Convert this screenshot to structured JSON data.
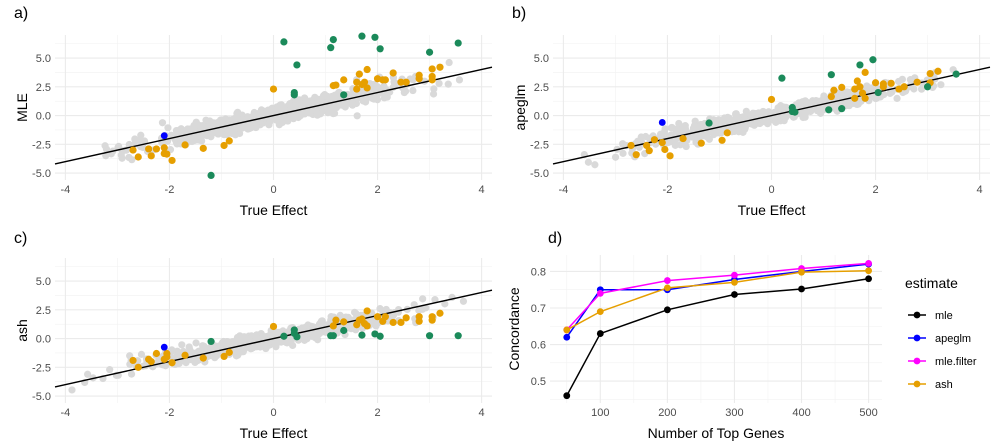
{
  "chart_data": [
    {
      "type": "scatter",
      "panel_label": "a)",
      "xlabel": "True Effect",
      "ylabel": "MLE",
      "xlim": [
        -4.2,
        4.2
      ],
      "ylim": [
        -5.6,
        7.0
      ],
      "xticks": [
        -4,
        -2,
        0,
        2,
        4
      ],
      "xtick_labels": [
        "-4",
        "-2",
        "0",
        "2",
        "4"
      ],
      "yticks": [
        -5,
        -2.5,
        0,
        2.5,
        5
      ],
      "ytick_labels": [
        "-5.0",
        "-2.5",
        "0.0",
        "2.5",
        "5.0"
      ],
      "grid": true,
      "reference_line": {
        "slope": 1,
        "intercept": 0,
        "color": "#000000"
      },
      "background_cloud": {
        "color": "#d9d9d9",
        "x_range": [
          -3.9,
          3.9
        ],
        "slope": 1,
        "spread": 0.6
      },
      "series": [
        {
          "name": "orange",
          "color": "#e69f00",
          "points": [
            [
              -2.7,
              -3.0
            ],
            [
              -2.6,
              -3.6
            ],
            [
              -2.4,
              -2.9
            ],
            [
              -2.35,
              -3.5
            ],
            [
              -2.25,
              -2.9
            ],
            [
              -2.1,
              -2.8
            ],
            [
              -2.1,
              -3.3
            ],
            [
              -2.05,
              -3.35
            ],
            [
              -1.95,
              -3.9
            ],
            [
              -1.7,
              -2.55
            ],
            [
              -1.35,
              -2.85
            ],
            [
              -0.95,
              -2.6
            ],
            [
              -0.85,
              -2.2
            ],
            [
              0.0,
              2.3
            ],
            [
              1.15,
              2.6
            ],
            [
              1.2,
              2.65
            ],
            [
              1.35,
              3.1
            ],
            [
              1.6,
              2.3
            ],
            [
              1.6,
              2.9
            ],
            [
              1.65,
              3.6
            ],
            [
              1.7,
              2.7
            ],
            [
              1.75,
              2.9
            ],
            [
              1.8,
              4.0
            ],
            [
              1.8,
              2.4
            ],
            [
              2.0,
              3.2
            ],
            [
              2.1,
              3.1
            ],
            [
              2.15,
              3.1
            ],
            [
              2.3,
              3.7
            ],
            [
              2.45,
              2.9
            ],
            [
              2.55,
              2.9
            ],
            [
              2.8,
              3.2
            ],
            [
              2.8,
              3.5
            ],
            [
              3.05,
              4.05
            ],
            [
              3.05,
              3.4
            ],
            [
              3.05,
              3.1
            ],
            [
              3.2,
              4.2
            ]
          ]
        },
        {
          "name": "green",
          "color": "#1b8a5a",
          "points": [
            [
              -1.2,
              -5.2
            ],
            [
              0.2,
              6.4
            ],
            [
              0.4,
              1.8
            ],
            [
              0.4,
              2.0
            ],
            [
              0.45,
              4.4
            ],
            [
              1.1,
              5.9
            ],
            [
              1.15,
              6.6
            ],
            [
              1.35,
              1.8
            ],
            [
              1.7,
              6.9
            ],
            [
              1.95,
              6.8
            ],
            [
              2.05,
              5.8
            ],
            [
              3.0,
              5.5
            ],
            [
              3.55,
              6.3
            ]
          ]
        },
        {
          "name": "blue",
          "color": "#0000ff",
          "points": [
            [
              -2.1,
              -1.75
            ]
          ]
        }
      ]
    },
    {
      "type": "scatter",
      "panel_label": "b)",
      "xlabel": "True Effect",
      "ylabel": "apeglm",
      "xlim": [
        -4.2,
        4.2
      ],
      "ylim": [
        -5.6,
        7.0
      ],
      "xticks": [
        -4,
        -2,
        0,
        2,
        4
      ],
      "xtick_labels": [
        "-4",
        "-2",
        "0",
        "2",
        "4"
      ],
      "yticks": [
        -5,
        -2.5,
        0,
        2.5,
        5
      ],
      "ytick_labels": [
        "-5.0",
        "-2.5",
        "0.0",
        "2.5",
        "5.0"
      ],
      "grid": true,
      "reference_line": {
        "slope": 1,
        "intercept": 0,
        "color": "#000000"
      },
      "background_cloud": {
        "color": "#d9d9d9",
        "x_range": [
          -3.9,
          3.9
        ],
        "slope": 1,
        "spread": 0.5
      },
      "series": [
        {
          "name": "orange",
          "color": "#e69f00",
          "points": [
            [
              -2.7,
              -2.6
            ],
            [
              -2.6,
              -3.4
            ],
            [
              -2.4,
              -2.6
            ],
            [
              -2.35,
              -3.05
            ],
            [
              -2.25,
              -2.1
            ],
            [
              -2.1,
              -2.35
            ],
            [
              -2.05,
              -2.95
            ],
            [
              -1.95,
              -3.5
            ],
            [
              -1.7,
              -2.0
            ],
            [
              -1.35,
              -2.4
            ],
            [
              -0.95,
              -2.15
            ],
            [
              -0.85,
              -1.5
            ],
            [
              0.0,
              1.4
            ],
            [
              1.15,
              1.65
            ],
            [
              1.2,
              2.2
            ],
            [
              1.35,
              2.45
            ],
            [
              1.6,
              1.5
            ],
            [
              1.6,
              2.3
            ],
            [
              1.65,
              3.0
            ],
            [
              1.7,
              2.5
            ],
            [
              1.75,
              1.95
            ],
            [
              1.8,
              3.75
            ],
            [
              1.8,
              1.5
            ],
            [
              2.0,
              2.85
            ],
            [
              2.15,
              2.5
            ],
            [
              2.15,
              2.75
            ],
            [
              2.3,
              2.8
            ],
            [
              2.45,
              2.3
            ],
            [
              2.55,
              2.5
            ],
            [
              2.8,
              2.9
            ],
            [
              3.05,
              3.65
            ],
            [
              3.05,
              2.85
            ],
            [
              3.2,
              3.85
            ]
          ]
        },
        {
          "name": "green",
          "color": "#1b8a5a",
          "points": [
            [
              -1.2,
              -0.65
            ],
            [
              0.2,
              3.25
            ],
            [
              0.4,
              0.7
            ],
            [
              0.4,
              0.35
            ],
            [
              0.45,
              0.3
            ],
            [
              1.1,
              0.5
            ],
            [
              1.15,
              3.55
            ],
            [
              1.35,
              0.6
            ],
            [
              1.7,
              4.4
            ],
            [
              1.95,
              4.85
            ],
            [
              2.05,
              2.0
            ],
            [
              3.0,
              2.5
            ],
            [
              3.55,
              3.6
            ]
          ]
        },
        {
          "name": "blue",
          "color": "#0000ff",
          "points": [
            [
              -2.1,
              -0.6
            ]
          ]
        }
      ]
    },
    {
      "type": "scatter",
      "panel_label": "c)",
      "xlabel": "True Effect",
      "ylabel": "ash",
      "xlim": [
        -4.2,
        4.2
      ],
      "ylim": [
        -5.6,
        7.0
      ],
      "xticks": [
        -4,
        -2,
        0,
        2,
        4
      ],
      "xtick_labels": [
        "-4",
        "-2",
        "0",
        "2",
        "4"
      ],
      "yticks": [
        -5,
        -2.5,
        0,
        2.5,
        5
      ],
      "ytick_labels": [
        "-5.0",
        "-2.5",
        "0.0",
        "2.5",
        "5.0"
      ],
      "grid": true,
      "reference_line": {
        "slope": 1,
        "intercept": 0,
        "color": "#000000"
      },
      "background_cloud": {
        "color": "#d9d9d9",
        "x_range": [
          -3.9,
          3.9
        ],
        "slope": 0.9,
        "spread": 0.5
      },
      "series": [
        {
          "name": "orange",
          "color": "#e69f00",
          "points": [
            [
              -2.7,
              -1.9
            ],
            [
              -2.6,
              -2.5
            ],
            [
              -2.4,
              -1.8
            ],
            [
              -2.35,
              -2.0
            ],
            [
              -2.25,
              -1.3
            ],
            [
              -2.1,
              -1.8
            ],
            [
              -2.05,
              -1.3
            ],
            [
              -2.05,
              -1.6
            ],
            [
              -1.95,
              -2.1
            ],
            [
              -1.7,
              -1.45
            ],
            [
              -1.35,
              -1.7
            ],
            [
              -0.95,
              -1.55
            ],
            [
              -0.85,
              -1.2
            ],
            [
              0.0,
              1.05
            ],
            [
              1.15,
              1.1
            ],
            [
              1.2,
              1.6
            ],
            [
              1.35,
              1.45
            ],
            [
              1.6,
              1.2
            ],
            [
              1.65,
              1.6
            ],
            [
              1.7,
              1.7
            ],
            [
              1.75,
              1.3
            ],
            [
              1.8,
              2.4
            ],
            [
              1.8,
              1.1
            ],
            [
              2.0,
              1.9
            ],
            [
              2.1,
              1.5
            ],
            [
              2.15,
              1.9
            ],
            [
              2.3,
              1.4
            ],
            [
              2.45,
              1.4
            ],
            [
              2.55,
              1.8
            ],
            [
              2.8,
              1.9
            ],
            [
              2.8,
              1.5
            ],
            [
              3.05,
              1.9
            ],
            [
              3.05,
              1.6
            ],
            [
              3.2,
              2.2
            ]
          ]
        },
        {
          "name": "green",
          "color": "#1b8a5a",
          "points": [
            [
              -1.2,
              -0.25
            ],
            [
              0.2,
              0.2
            ],
            [
              0.4,
              0.75
            ],
            [
              0.4,
              0.45
            ],
            [
              0.45,
              0.15
            ],
            [
              1.1,
              0.25
            ],
            [
              1.15,
              0.25
            ],
            [
              1.35,
              0.7
            ],
            [
              1.7,
              0.3
            ],
            [
              1.95,
              0.4
            ],
            [
              2.05,
              0.2
            ],
            [
              3.0,
              0.25
            ],
            [
              3.55,
              0.25
            ]
          ]
        },
        {
          "name": "blue",
          "color": "#0000ff",
          "points": [
            [
              -2.1,
              -0.75
            ]
          ]
        }
      ]
    },
    {
      "type": "line",
      "panel_label": "d)",
      "xlabel": "Number of Top Genes",
      "ylabel": "Concordance",
      "xlim": [
        25,
        520
      ],
      "ylim": [
        0.44,
        0.845
      ],
      "xticks": [
        100,
        200,
        300,
        400,
        500
      ],
      "xtick_labels": [
        "100",
        "200",
        "300",
        "400",
        "500"
      ],
      "yticks": [
        0.5,
        0.6,
        0.7,
        0.8
      ],
      "ytick_labels": [
        "0.5",
        "0.6",
        "0.7",
        "0.8"
      ],
      "grid": true,
      "x": [
        50,
        100,
        200,
        300,
        400,
        500
      ],
      "series": [
        {
          "name": "mle",
          "color": "#000000",
          "values": [
            0.46,
            0.63,
            0.695,
            0.737,
            0.752,
            0.78
          ]
        },
        {
          "name": "apeglm",
          "color": "#0000ff",
          "values": [
            0.62,
            0.75,
            0.75,
            0.778,
            0.8,
            0.82
          ]
        },
        {
          "name": "mle.filter",
          "color": "#ff00ff",
          "values": [
            0.64,
            0.74,
            0.775,
            0.79,
            0.808,
            0.822
          ]
        },
        {
          "name": "ash",
          "color": "#e69f00",
          "values": [
            0.64,
            0.69,
            0.755,
            0.77,
            0.798,
            0.802
          ]
        }
      ],
      "legend": {
        "title": "estimate",
        "position": "right",
        "entries": [
          "mle",
          "apeglm",
          "mle.filter",
          "ash"
        ]
      }
    }
  ]
}
